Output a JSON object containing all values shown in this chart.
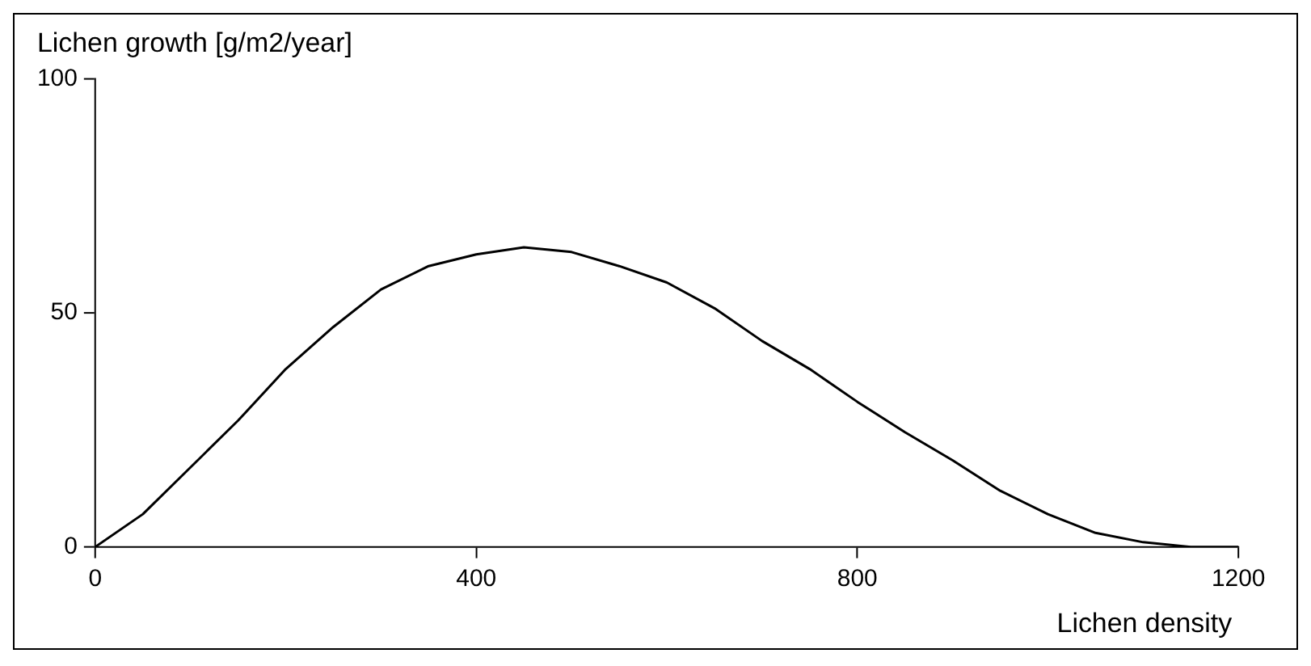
{
  "chart_data": {
    "type": "line",
    "xlabel": "Lichen density",
    "ylabel": "Lichen growth [g/m2/year]",
    "x": [
      0,
      50,
      100,
      150,
      200,
      250,
      300,
      350,
      400,
      450,
      500,
      550,
      600,
      650,
      700,
      750,
      800,
      850,
      900,
      950,
      1000,
      1050,
      1100,
      1150,
      1200
    ],
    "series": [
      {
        "color": "#000000",
        "values": [
          0,
          7,
          17,
          27,
          38,
          47,
          55,
          60,
          62.5,
          64,
          63,
          60,
          56.5,
          51,
          44,
          38,
          31,
          24.5,
          18.5,
          12,
          7,
          3,
          1,
          0,
          0
        ]
      }
    ],
    "xlim": [
      0,
      1200
    ],
    "xticks": [
      0,
      400,
      800,
      1200
    ],
    "ylim": [
      0,
      100
    ],
    "yticks": [
      0,
      50,
      100
    ],
    "grid": false,
    "legend": false,
    "marker": "none",
    "line_style": "solid"
  }
}
